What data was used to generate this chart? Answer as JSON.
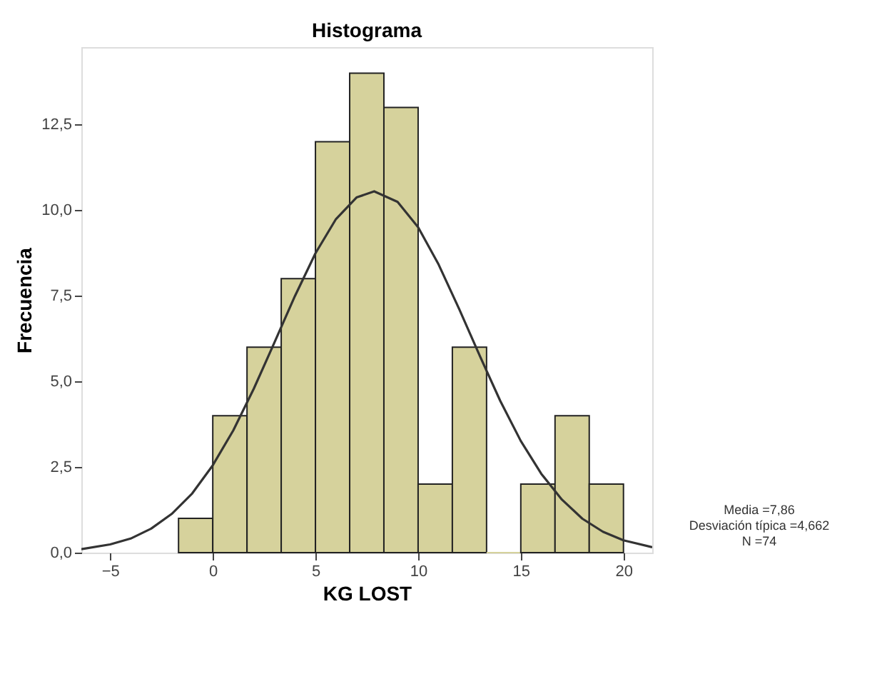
{
  "chart_data": {
    "type": "histogram",
    "title": "Histograma",
    "xlabel": "KG LOST",
    "ylabel": "Frecuencia",
    "bins": [
      -1.667,
      0,
      1.667,
      3.333,
      5,
      6.667,
      8.333,
      10,
      11.667,
      13.333,
      15,
      16.667,
      18.333,
      20
    ],
    "values": [
      1,
      4,
      6,
      8,
      12,
      14,
      13,
      2,
      6,
      0,
      2,
      4,
      2
    ],
    "color": "#d6d29c",
    "series": [
      {
        "type": "line",
        "color": "#333333",
        "x": [
          -6.4,
          -5,
          -4,
          -3,
          -2,
          -1,
          0,
          1,
          2,
          3,
          4,
          5,
          6,
          7,
          7.86,
          9,
          10,
          11,
          12,
          13,
          14,
          15,
          16,
          17,
          18,
          19,
          20,
          21.4
        ],
        "values": [
          0.1,
          0.24,
          0.41,
          0.7,
          1.13,
          1.73,
          2.55,
          3.57,
          4.79,
          6.13,
          7.49,
          8.74,
          9.74,
          10.37,
          10.55,
          10.24,
          9.5,
          8.41,
          7.11,
          5.75,
          4.43,
          3.26,
          2.3,
          1.55,
          0.99,
          0.61,
          0.36,
          0.16
        ]
      }
    ],
    "xlim": [
      -6.4,
      21.4
    ],
    "ylim": [
      0,
      14.76
    ],
    "xticks": [
      -5,
      0,
      5,
      10,
      15,
      20
    ],
    "yticks": [
      {
        "value": 0,
        "label": "0,0"
      },
      {
        "value": 2.5,
        "label": "2,5"
      },
      {
        "value": 5,
        "label": "5,0"
      },
      {
        "value": 7.5,
        "label": "7,5"
      },
      {
        "value": 10,
        "label": "10,0"
      },
      {
        "value": 12.5,
        "label": "12,5"
      }
    ],
    "annotations": [
      "Media =7,86",
      "Desviación típica =4,662",
      "N =74"
    ],
    "grid": false
  }
}
